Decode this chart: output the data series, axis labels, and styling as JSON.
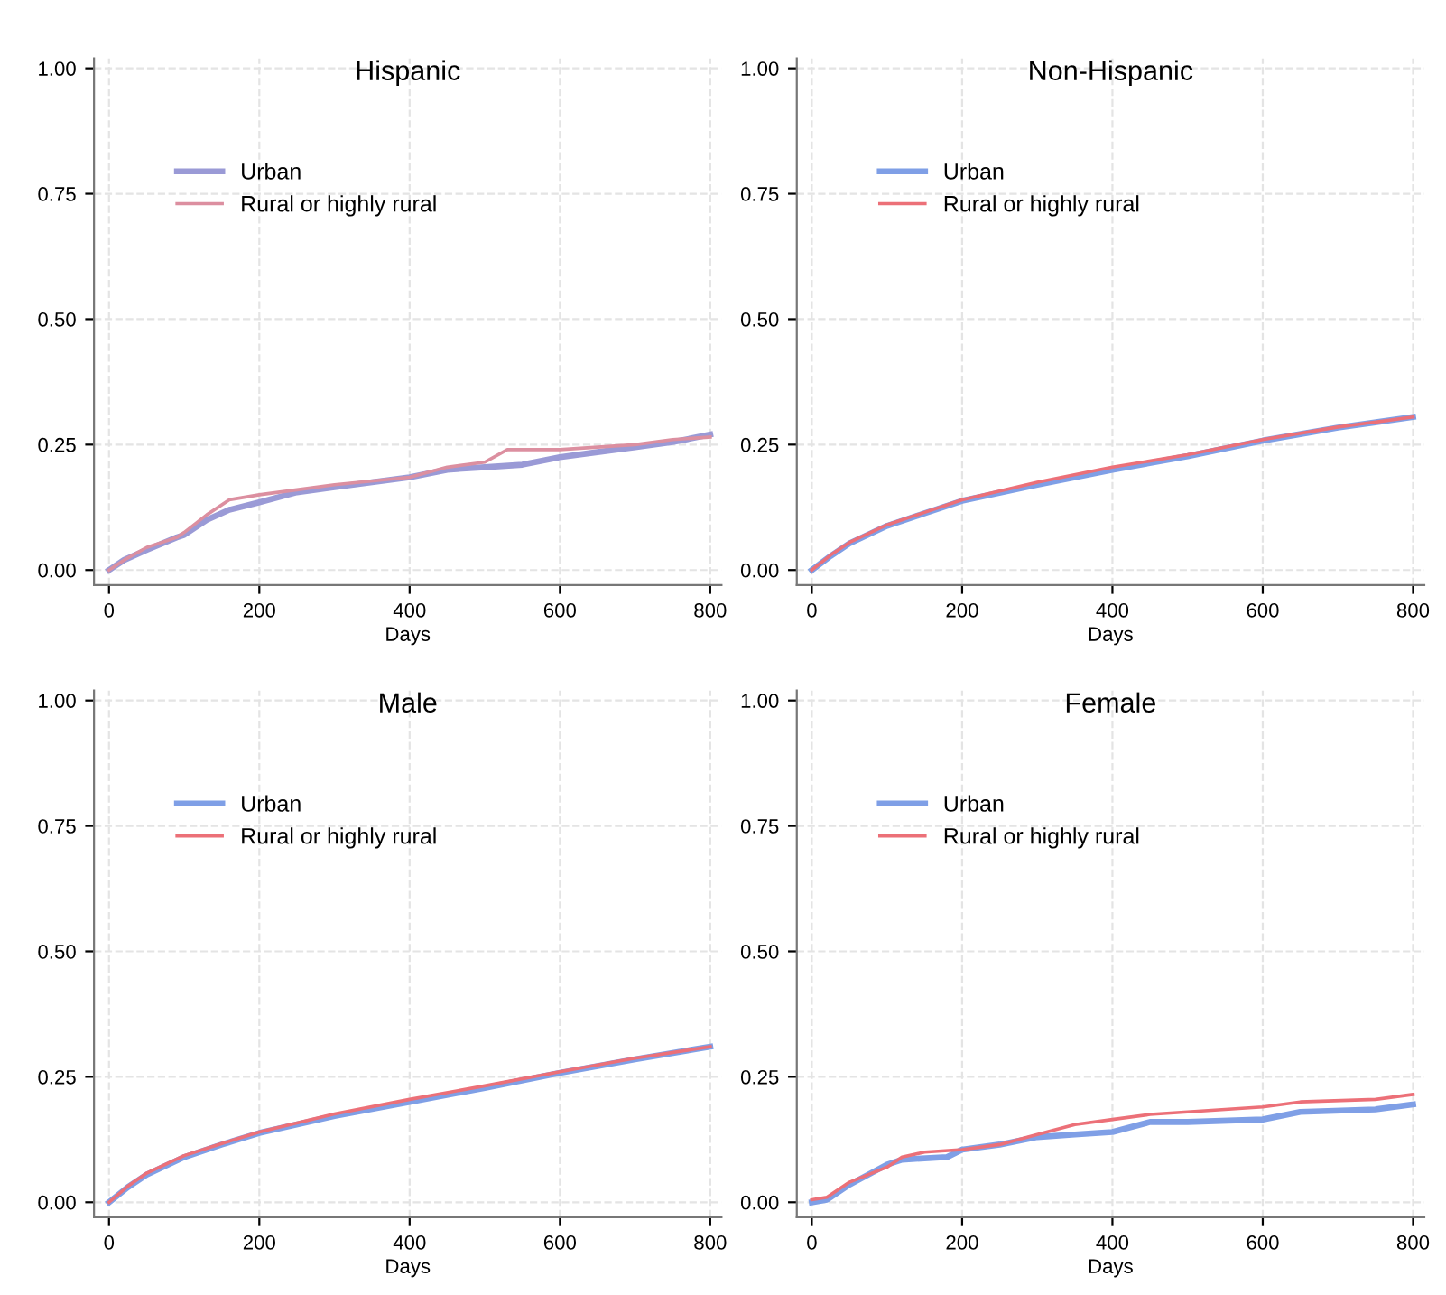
{
  "chart_data": [
    {
      "type": "line",
      "title": "Hispanic",
      "xlabel": "Days",
      "xlim": [
        -20,
        815
      ],
      "ylim": [
        -0.03,
        1.02
      ],
      "xticks": [
        0,
        200,
        400,
        600,
        800
      ],
      "yticks": [
        {
          "value": 0,
          "label": "0.00"
        },
        {
          "value": 0.25,
          "label": "0.25"
        },
        {
          "value": 0.5,
          "label": "0.50"
        },
        {
          "value": 0.75,
          "label": "0.75"
        },
        {
          "value": 1,
          "label": "1.00"
        }
      ],
      "grid": true,
      "legend": "top left",
      "line_style": "solid",
      "marker": "none",
      "series": [
        {
          "name": "Urban",
          "color": "#9a9ad6",
          "x": [
            0,
            20,
            50,
            90,
            100,
            130,
            160,
            200,
            250,
            300,
            400,
            450,
            500,
            550,
            600,
            650,
            700,
            750,
            800
          ],
          "values": [
            0,
            0.02,
            0.04,
            0.065,
            0.07,
            0.1,
            0.12,
            0.135,
            0.155,
            0.165,
            0.185,
            0.2,
            0.205,
            0.21,
            0.225,
            0.235,
            0.245,
            0.255,
            0.27
          ]
        },
        {
          "name": "Rural or highly rural",
          "color": "#dc8fa0",
          "x": [
            0,
            20,
            50,
            90,
            100,
            130,
            160,
            200,
            250,
            300,
            400,
            450,
            500,
            530,
            600,
            650,
            700,
            750,
            800
          ],
          "values": [
            0,
            0.02,
            0.045,
            0.065,
            0.075,
            0.11,
            0.14,
            0.15,
            0.16,
            0.17,
            0.185,
            0.205,
            0.215,
            0.24,
            0.24,
            0.245,
            0.25,
            0.26,
            0.265
          ]
        }
      ]
    },
    {
      "type": "line",
      "title": "Non-Hispanic",
      "xlabel": "Days",
      "xlim": [
        -20,
        815
      ],
      "ylim": [
        -0.03,
        1.02
      ],
      "xticks": [
        0,
        200,
        400,
        600,
        800
      ],
      "yticks": [
        {
          "value": 0,
          "label": "0.00"
        },
        {
          "value": 0.25,
          "label": "0.25"
        },
        {
          "value": 0.5,
          "label": "0.50"
        },
        {
          "value": 0.75,
          "label": "0.75"
        },
        {
          "value": 1,
          "label": "1.00"
        }
      ],
      "grid": true,
      "legend": "top left",
      "line_style": "solid",
      "marker": "none",
      "series": [
        {
          "name": "Urban",
          "color": "#7f9fe6",
          "x": [
            0,
            25,
            50,
            100,
            150,
            200,
            300,
            400,
            500,
            600,
            700,
            800
          ],
          "values": [
            0,
            0.028,
            0.053,
            0.088,
            0.113,
            0.138,
            0.17,
            0.2,
            0.227,
            0.258,
            0.284,
            0.305
          ]
        },
        {
          "name": "Rural or highly rural",
          "color": "#ec7078",
          "x": [
            0,
            25,
            50,
            100,
            150,
            200,
            300,
            400,
            500,
            600,
            700,
            800
          ],
          "values": [
            0,
            0.03,
            0.055,
            0.09,
            0.115,
            0.14,
            0.175,
            0.205,
            0.23,
            0.26,
            0.285,
            0.305
          ]
        }
      ]
    },
    {
      "type": "line",
      "title": "Male",
      "xlabel": "Days",
      "xlim": [
        -20,
        815
      ],
      "ylim": [
        -0.03,
        1.02
      ],
      "xticks": [
        0,
        200,
        400,
        600,
        800
      ],
      "yticks": [
        {
          "value": 0,
          "label": "0.00"
        },
        {
          "value": 0.25,
          "label": "0.25"
        },
        {
          "value": 0.5,
          "label": "0.50"
        },
        {
          "value": 0.75,
          "label": "0.75"
        },
        {
          "value": 1,
          "label": "1.00"
        }
      ],
      "grid": true,
      "legend": "top left",
      "line_style": "solid",
      "marker": "none",
      "series": [
        {
          "name": "Urban",
          "color": "#7f9fe6",
          "x": [
            0,
            25,
            50,
            100,
            150,
            200,
            300,
            400,
            500,
            600,
            700,
            800
          ],
          "values": [
            0,
            0.03,
            0.055,
            0.09,
            0.115,
            0.138,
            0.172,
            0.2,
            0.228,
            0.258,
            0.285,
            0.31
          ]
        },
        {
          "name": "Rural or highly rural",
          "color": "#ec7078",
          "x": [
            0,
            25,
            50,
            100,
            150,
            200,
            300,
            400,
            500,
            600,
            700,
            800
          ],
          "values": [
            0,
            0.032,
            0.058,
            0.093,
            0.117,
            0.14,
            0.176,
            0.205,
            0.232,
            0.26,
            0.287,
            0.31
          ]
        }
      ]
    },
    {
      "type": "line",
      "title": "Female",
      "xlabel": "Days",
      "xlim": [
        -20,
        815
      ],
      "ylim": [
        -0.03,
        1.02
      ],
      "xticks": [
        0,
        200,
        400,
        600,
        800
      ],
      "yticks": [
        {
          "value": 0,
          "label": "0.00"
        },
        {
          "value": 0.25,
          "label": "0.25"
        },
        {
          "value": 0.5,
          "label": "0.50"
        },
        {
          "value": 0.75,
          "label": "0.75"
        },
        {
          "value": 1,
          "label": "1.00"
        }
      ],
      "grid": true,
      "legend": "top left",
      "line_style": "solid",
      "marker": "none",
      "series": [
        {
          "name": "Urban",
          "color": "#7f9fe6",
          "x": [
            0,
            20,
            50,
            100,
            120,
            180,
            200,
            250,
            300,
            350,
            400,
            450,
            500,
            600,
            650,
            750,
            800
          ],
          "values": [
            0,
            0.005,
            0.035,
            0.075,
            0.085,
            0.09,
            0.105,
            0.115,
            0.13,
            0.135,
            0.14,
            0.16,
            0.16,
            0.165,
            0.18,
            0.185,
            0.195
          ]
        },
        {
          "name": "Rural or highly rural",
          "color": "#ec7078",
          "x": [
            0,
            20,
            50,
            100,
            120,
            150,
            200,
            250,
            300,
            350,
            400,
            450,
            500,
            600,
            650,
            750,
            800
          ],
          "values": [
            0.005,
            0.01,
            0.04,
            0.07,
            0.09,
            0.1,
            0.105,
            0.115,
            0.135,
            0.155,
            0.165,
            0.175,
            0.18,
            0.19,
            0.2,
            0.205,
            0.215
          ]
        }
      ]
    }
  ]
}
